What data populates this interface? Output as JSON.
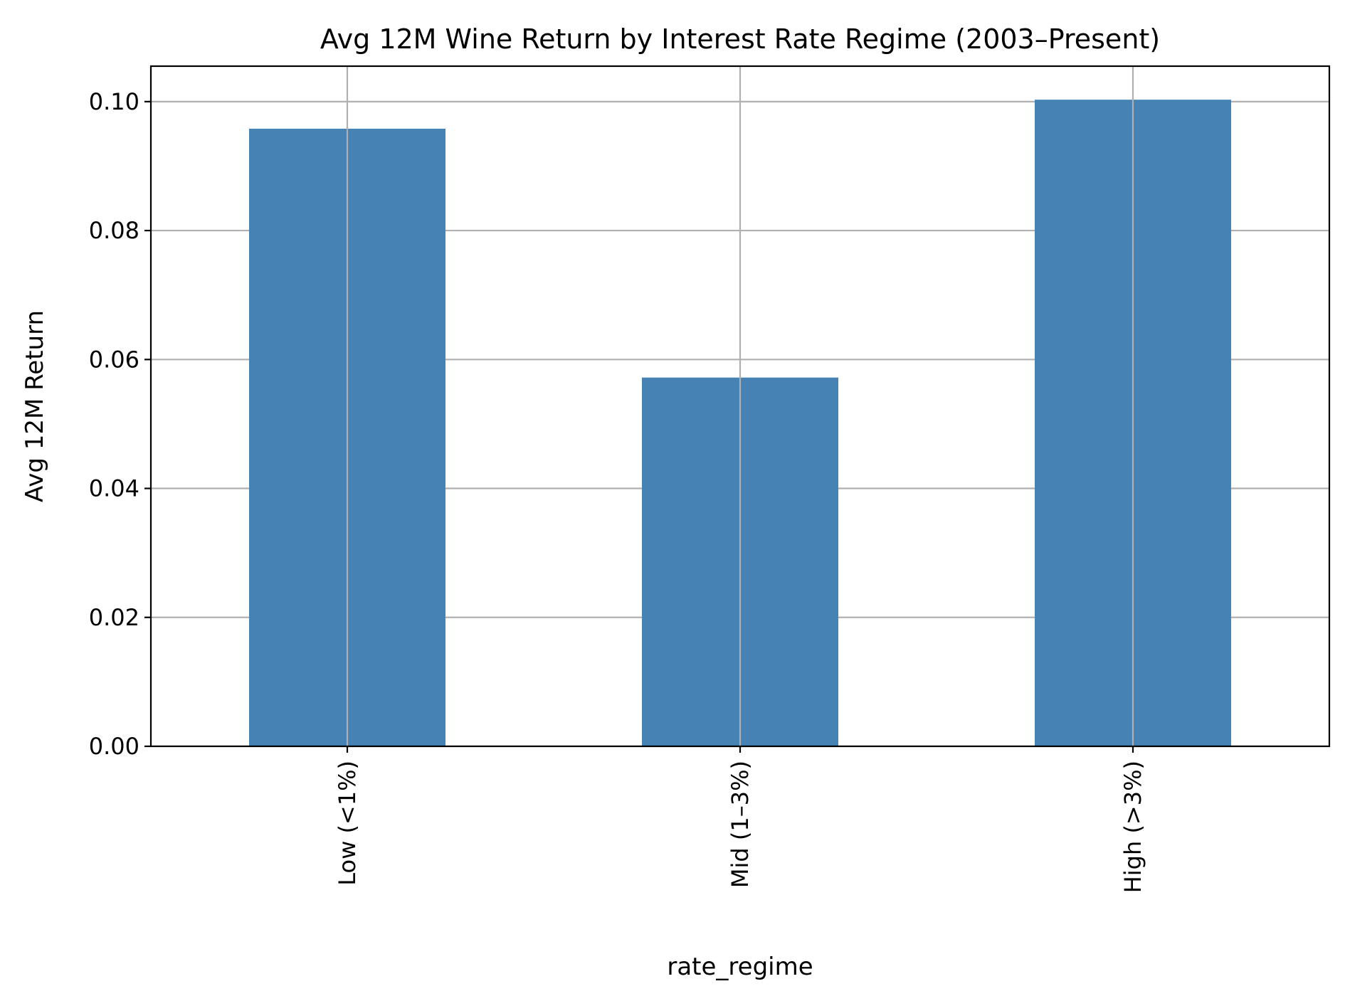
{
  "chart_data": {
    "type": "bar",
    "title": "Avg 12M Wine Return by Interest Rate Regime (2003–Present)",
    "xlabel": "rate_regime",
    "ylabel": "Avg 12M Return",
    "categories": [
      "Low (<1%)",
      "Mid (1–3%)",
      "High (>3%)"
    ],
    "values": [
      0.0958,
      0.0572,
      0.1003
    ],
    "ylim": [
      0,
      0.1055
    ],
    "yticks": [
      0.0,
      0.02,
      0.04,
      0.06,
      0.08,
      0.1
    ],
    "ytick_labels": [
      "0.00",
      "0.02",
      "0.04",
      "0.06",
      "0.08",
      "0.10"
    ],
    "grid": true,
    "bar_color": "#4682b4"
  }
}
